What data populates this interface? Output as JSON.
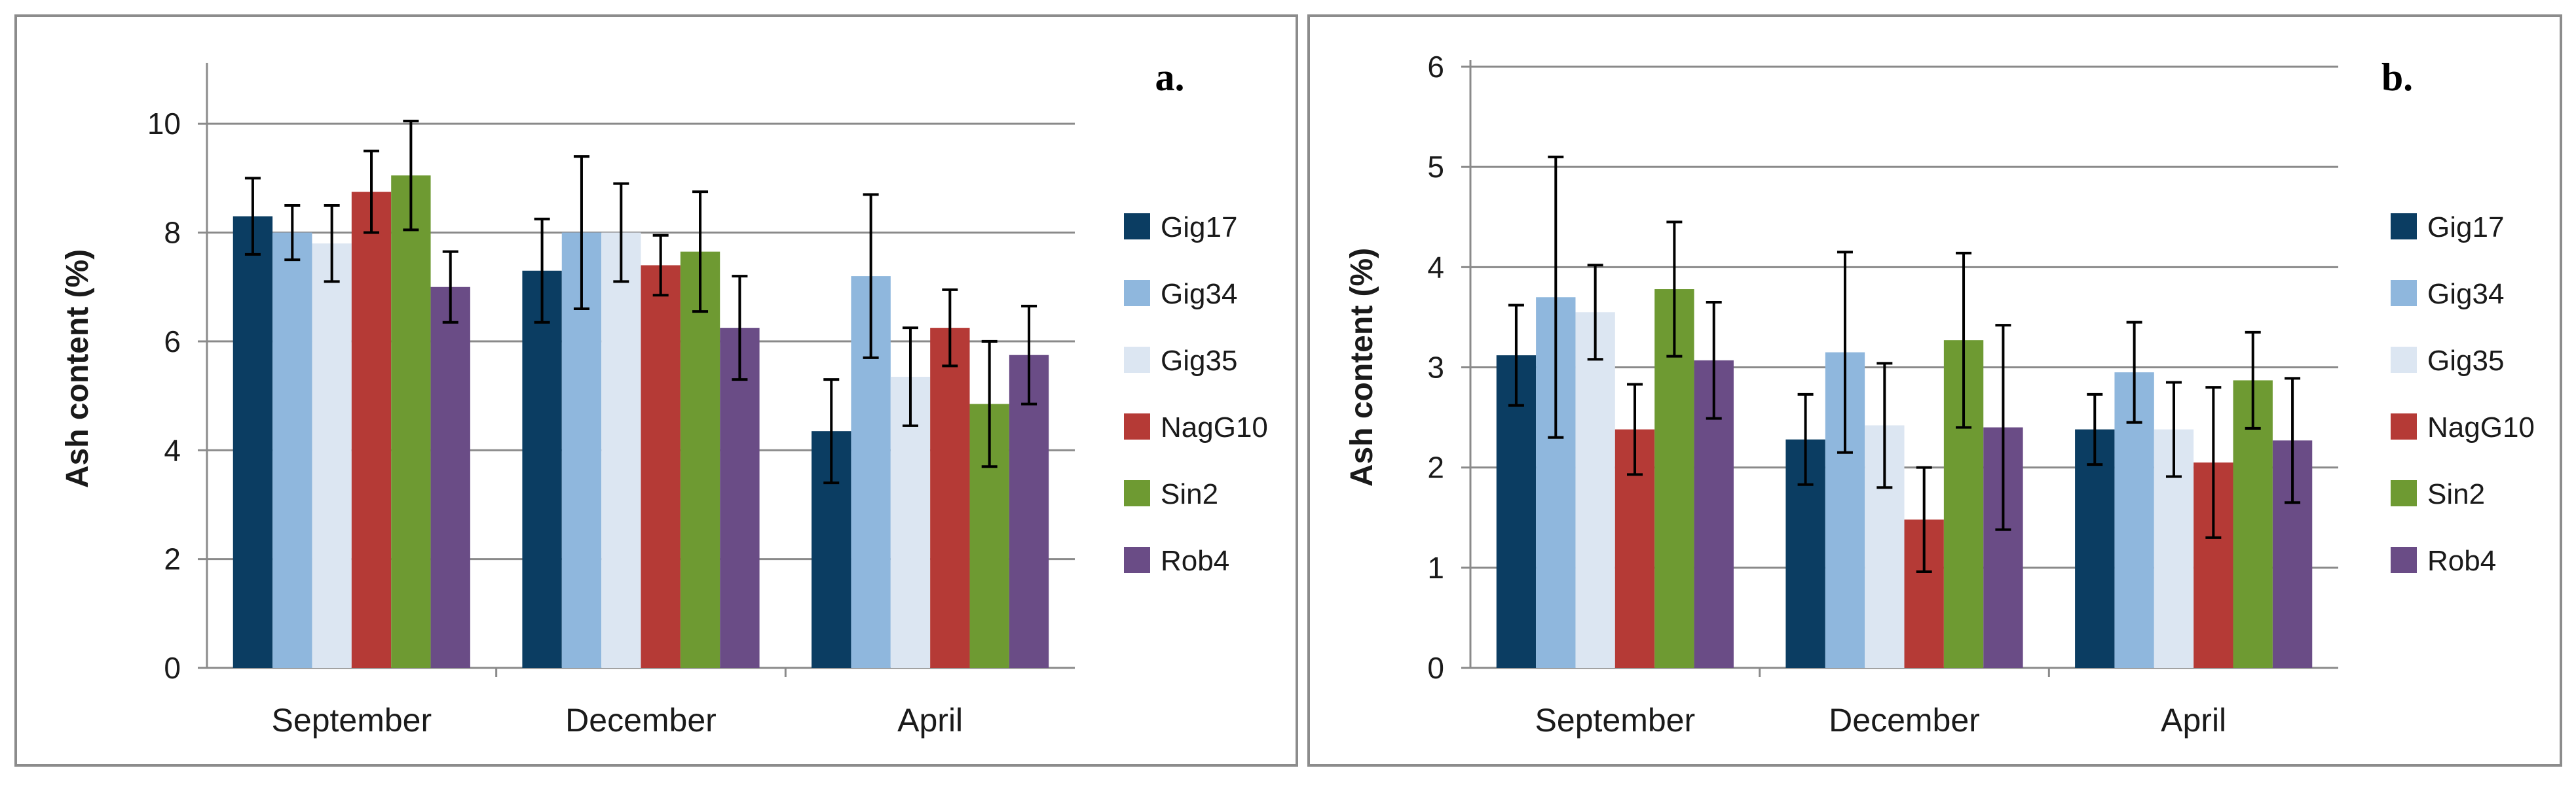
{
  "chart_data": [
    {
      "type": "bar",
      "panel_label": "a.",
      "ylabel": "Ash content (%)",
      "xlabel": "",
      "ylim": [
        0,
        11
      ],
      "yticks": [
        0,
        2,
        4,
        6,
        8,
        10
      ],
      "grid": true,
      "legend_position": "right",
      "categories": [
        "September",
        "December",
        "April"
      ],
      "series": [
        {
          "name": "Gig17",
          "color": "#0b3d62",
          "values": [
            8.3,
            7.3,
            4.35
          ],
          "errors": [
            0.7,
            0.95,
            0.95
          ]
        },
        {
          "name": "Gig34",
          "color": "#8fb7dd",
          "values": [
            8.0,
            8.0,
            7.2
          ],
          "errors": [
            0.5,
            1.4,
            1.5
          ]
        },
        {
          "name": "Gig35",
          "color": "#dce6f2",
          "values": [
            7.8,
            8.0,
            5.35
          ],
          "errors": [
            0.7,
            0.9,
            0.9
          ]
        },
        {
          "name": "NagG10",
          "color": "#b53a36",
          "values": [
            8.75,
            7.4,
            6.25
          ],
          "errors": [
            0.75,
            0.55,
            0.7
          ]
        },
        {
          "name": "Sin2",
          "color": "#6e9a32",
          "values": [
            9.05,
            7.65,
            4.85
          ],
          "errors": [
            1.0,
            1.1,
            1.15
          ]
        },
        {
          "name": "Rob4",
          "color": "#6a4c86",
          "values": [
            7.0,
            6.25,
            5.75
          ],
          "errors": [
            0.65,
            0.95,
            0.9
          ]
        }
      ]
    },
    {
      "type": "bar",
      "panel_label": "b.",
      "ylabel": "Ash content (%)",
      "xlabel": "",
      "ylim": [
        0,
        6
      ],
      "yticks": [
        0,
        1,
        2,
        3,
        4,
        5,
        6
      ],
      "grid": true,
      "legend_position": "right",
      "categories": [
        "September",
        "December",
        "April"
      ],
      "series": [
        {
          "name": "Gig17",
          "color": "#0b3d62",
          "values": [
            3.12,
            2.28,
            2.38
          ],
          "errors": [
            0.5,
            0.45,
            0.35
          ]
        },
        {
          "name": "Gig34",
          "color": "#8fb7dd",
          "values": [
            3.7,
            3.15,
            2.95
          ],
          "errors": [
            1.4,
            1.0,
            0.5
          ]
        },
        {
          "name": "Gig35",
          "color": "#dce6f2",
          "values": [
            3.55,
            2.42,
            2.38
          ],
          "errors": [
            0.47,
            0.62,
            0.47
          ]
        },
        {
          "name": "NagG10",
          "color": "#b53a36",
          "values": [
            2.38,
            1.48,
            2.05
          ],
          "errors": [
            0.45,
            0.52,
            0.75
          ]
        },
        {
          "name": "Sin2",
          "color": "#6e9a32",
          "values": [
            3.78,
            3.27,
            2.87
          ],
          "errors": [
            0.67,
            0.87,
            0.48
          ]
        },
        {
          "name": "Rob4",
          "color": "#6a4c86",
          "values": [
            3.07,
            2.4,
            2.27
          ],
          "errors": [
            0.58,
            1.02,
            0.62
          ]
        }
      ]
    }
  ]
}
